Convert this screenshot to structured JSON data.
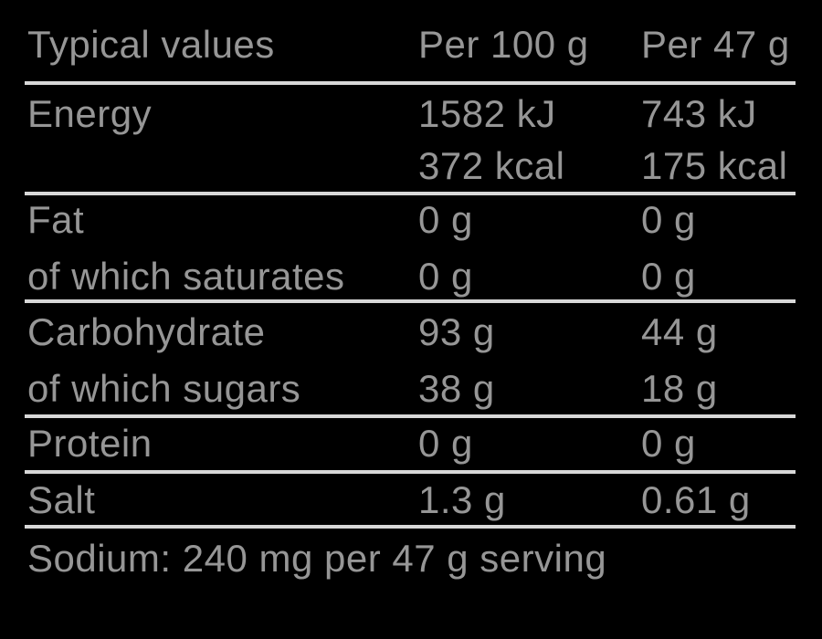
{
  "meta": {
    "background_color": "#000000",
    "text_color": "#969696",
    "rule_color": "#d8d8d8"
  },
  "table": {
    "header": {
      "col_label": "Typical values",
      "col_per100": "Per 100 g",
      "col_per47": "Per 47 g"
    },
    "rows": [
      {
        "label": "Energy",
        "per100": "1582 kJ",
        "per47": "743 kJ"
      },
      {
        "label": "",
        "per100": "372 kcal",
        "per47": "175 kcal"
      },
      {
        "label": "Fat",
        "per100": "0 g",
        "per47": "0 g"
      },
      {
        "label": "of which saturates",
        "per100": "0 g",
        "per47": "0 g"
      },
      {
        "label": "Carbohydrate",
        "per100": "93 g",
        "per47": "44 g"
      },
      {
        "label": "of which sugars",
        "per100": "38 g",
        "per47": "18 g"
      },
      {
        "label": "Protein",
        "per100": "0 g",
        "per47": "0 g"
      },
      {
        "label": "Salt",
        "per100": "1.3 g",
        "per47": "0.61 g"
      }
    ],
    "footnote": "Sodium: 240 mg per 47 g serving"
  }
}
